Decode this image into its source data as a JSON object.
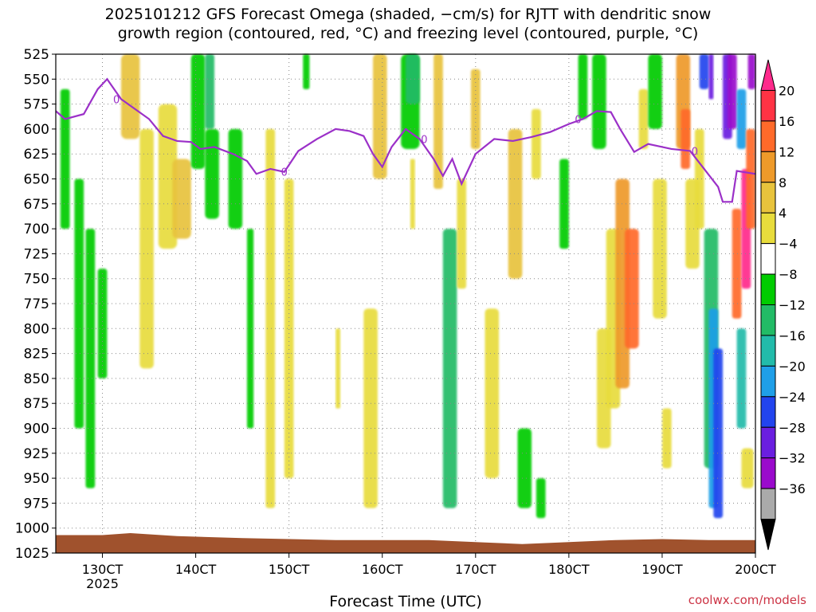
{
  "title_line1": "2025101212 GFS Forecast Omega (shaded, −cm/s) for RJTT with dendritic snow",
  "title_line2": "growth region (contoured, red, °C) and freezing level (contoured, purple, °C)",
  "credit": "coolwx.com/models",
  "chart_data": {
    "type": "heatmap",
    "xlabel": "Forecast Time (UTC)",
    "x_ticks": [
      "130CT",
      "140CT",
      "150CT",
      "160CT",
      "170CT",
      "180CT",
      "190CT",
      "200CT"
    ],
    "x_ticks_sublabel": "2025",
    "x_range_days": [
      12.5,
      20.0
    ],
    "y_ticks": [
      "525",
      "550",
      "575",
      "600",
      "625",
      "650",
      "675",
      "700",
      "725",
      "750",
      "775",
      "800",
      "825",
      "850",
      "875",
      "900",
      "925",
      "950",
      "975",
      "1000",
      "1025"
    ],
    "y_range_hpa": [
      525,
      1025
    ],
    "y_inverted": true,
    "grid": true,
    "colorbar": {
      "labels": [
        "20",
        "16",
        "12",
        "8",
        "4",
        "−4",
        "−8",
        "−12",
        "−16",
        "−20",
        "−24",
        "−28",
        "−32",
        "−36"
      ],
      "colors": [
        "#ff2a8c",
        "#ff3344",
        "#ff6a2a",
        "#ee9a2a",
        "#e8c33c",
        "#e8dc3c",
        "#ffffff",
        "#00cc00",
        "#22bb66",
        "#22bbaa",
        "#1f9fe8",
        "#2244ee",
        "#6a1ee0",
        "#9a0acc",
        "#aaaaaa",
        "#000000"
      ]
    },
    "freezing_level_0C_hpa": [
      [
        12.5,
        582
      ],
      [
        12.6,
        590
      ],
      [
        12.8,
        585
      ],
      [
        12.95,
        560
      ],
      [
        13.05,
        550
      ],
      [
        13.2,
        570
      ],
      [
        13.35,
        580
      ],
      [
        13.5,
        590
      ],
      [
        13.65,
        607
      ],
      [
        13.8,
        612
      ],
      [
        13.95,
        613
      ],
      [
        14.05,
        620
      ],
      [
        14.2,
        618
      ],
      [
        14.4,
        625
      ],
      [
        14.55,
        632
      ],
      [
        14.65,
        645
      ],
      [
        14.8,
        640
      ],
      [
        14.95,
        643
      ],
      [
        15.1,
        622
      ],
      [
        15.3,
        610
      ],
      [
        15.5,
        600
      ],
      [
        15.65,
        602
      ],
      [
        15.8,
        607
      ],
      [
        15.9,
        625
      ],
      [
        16.0,
        638
      ],
      [
        16.1,
        618
      ],
      [
        16.25,
        600
      ],
      [
        16.4,
        610
      ],
      [
        16.55,
        630
      ],
      [
        16.65,
        647
      ],
      [
        16.75,
        630
      ],
      [
        16.85,
        655
      ],
      [
        17.0,
        625
      ],
      [
        17.2,
        610
      ],
      [
        17.4,
        612
      ],
      [
        17.6,
        608
      ],
      [
        17.8,
        603
      ],
      [
        18.0,
        595
      ],
      [
        18.15,
        590
      ],
      [
        18.3,
        582
      ],
      [
        18.45,
        583
      ],
      [
        18.55,
        600
      ],
      [
        18.7,
        623
      ],
      [
        18.85,
        615
      ],
      [
        19.1,
        620
      ],
      [
        19.3,
        622
      ],
      [
        19.45,
        640
      ],
      [
        19.6,
        658
      ],
      [
        19.65,
        673
      ],
      [
        19.75,
        673
      ],
      [
        19.8,
        642
      ],
      [
        20.0,
        645
      ]
    ],
    "freezing_level_labels": [
      [
        13.15,
        "0"
      ],
      [
        14.95,
        "0"
      ],
      [
        16.45,
        "0"
      ],
      [
        18.1,
        "0"
      ],
      [
        19.35,
        "0"
      ]
    ]
  }
}
